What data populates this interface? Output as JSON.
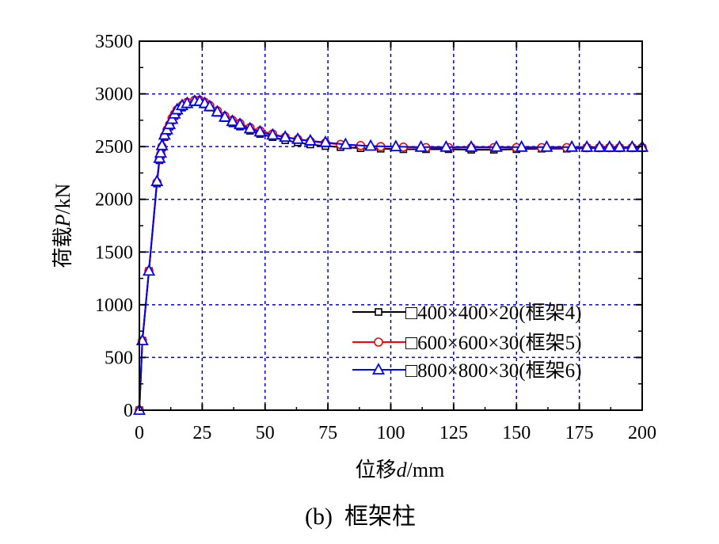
{
  "chart_data": {
    "type": "line",
    "caption": "(b)  框架柱",
    "xlabel_prefix": "位移",
    "xlabel_var": "d",
    "xlabel_unit": "/mm",
    "ylabel_prefix": "荷载",
    "ylabel_var": "P",
    "ylabel_unit": "/kN",
    "xlim": [
      0,
      200
    ],
    "ylim": [
      0,
      3500
    ],
    "xticks": [
      "0",
      "25",
      "50",
      "75",
      "100",
      "125",
      "150",
      "175",
      "200"
    ],
    "yticks": [
      "0",
      "500",
      "1000",
      "1500",
      "2000",
      "2500",
      "3000",
      "3500"
    ],
    "grid": true,
    "legend_position": "bottom-right",
    "series": [
      {
        "name": "□400×400×20(框架4)",
        "color": "#000000",
        "marker": "square",
        "x": [
          0,
          1.2,
          3.8,
          7,
          8,
          8.5,
          9,
          10,
          11,
          12,
          13,
          14,
          15,
          17,
          19,
          22,
          24,
          26,
          28,
          31,
          34,
          37,
          40,
          44,
          48,
          53,
          58,
          63,
          68,
          74,
          80,
          88,
          96,
          105,
          114,
          123,
          132,
          141,
          150,
          160,
          170,
          178,
          183,
          187,
          191,
          196,
          200
        ],
        "y": [
          0,
          660,
          1320,
          2150,
          2370,
          2420,
          2490,
          2590,
          2640,
          2690,
          2750,
          2790,
          2830,
          2870,
          2900,
          2920,
          2920,
          2900,
          2870,
          2820,
          2770,
          2720,
          2690,
          2650,
          2620,
          2590,
          2560,
          2540,
          2520,
          2505,
          2495,
          2485,
          2480,
          2475,
          2475,
          2475,
          2470,
          2470,
          2475,
          2480,
          2480,
          2485,
          2485,
          2485,
          2485,
          2485,
          2485
        ]
      },
      {
        "name": "□600×600×30(框架5)",
        "color": "#ff0000",
        "marker": "circle",
        "x": [
          0,
          1.2,
          3.8,
          7,
          8,
          8.5,
          9,
          10,
          11,
          12,
          13,
          14,
          15,
          17,
          19,
          22,
          24,
          26,
          28,
          31,
          34,
          37,
          40,
          44,
          48,
          53,
          58,
          63,
          68,
          74,
          80,
          88,
          96,
          105,
          114,
          123,
          132,
          141,
          150,
          160,
          170,
          178,
          183,
          187,
          191,
          196,
          200
        ],
        "y": [
          0,
          660,
          1320,
          2160,
          2380,
          2430,
          2500,
          2600,
          2660,
          2710,
          2770,
          2810,
          2850,
          2890,
          2920,
          2940,
          2940,
          2920,
          2890,
          2840,
          2790,
          2750,
          2720,
          2680,
          2650,
          2620,
          2590,
          2570,
          2550,
          2535,
          2520,
          2510,
          2500,
          2495,
          2490,
          2490,
          2490,
          2490,
          2490,
          2490,
          2490,
          2490,
          2490,
          2490,
          2490,
          2490,
          2490
        ]
      },
      {
        "name": "□800×800×30(框架6)",
        "color": "#0000ff",
        "marker": "triangle",
        "x": [
          0,
          1.2,
          3.8,
          7,
          8,
          8.5,
          9,
          10,
          11,
          12,
          13,
          14,
          15,
          17,
          19,
          22,
          24,
          26,
          28,
          31,
          34,
          37,
          40,
          44,
          48,
          53,
          58,
          63,
          68,
          74,
          82,
          92,
          102,
          112,
          122,
          132,
          142,
          152,
          162,
          172,
          178,
          183,
          187,
          191,
          196,
          200
        ],
        "y": [
          0,
          660,
          1320,
          2170,
          2390,
          2440,
          2510,
          2610,
          2660,
          2710,
          2760,
          2810,
          2850,
          2890,
          2910,
          2930,
          2930,
          2910,
          2880,
          2830,
          2780,
          2740,
          2710,
          2670,
          2640,
          2610,
          2590,
          2570,
          2555,
          2540,
          2520,
          2505,
          2500,
          2495,
          2495,
          2495,
          2495,
          2495,
          2495,
          2495,
          2495,
          2495,
          2495,
          2495,
          2495,
          2495
        ]
      }
    ]
  }
}
